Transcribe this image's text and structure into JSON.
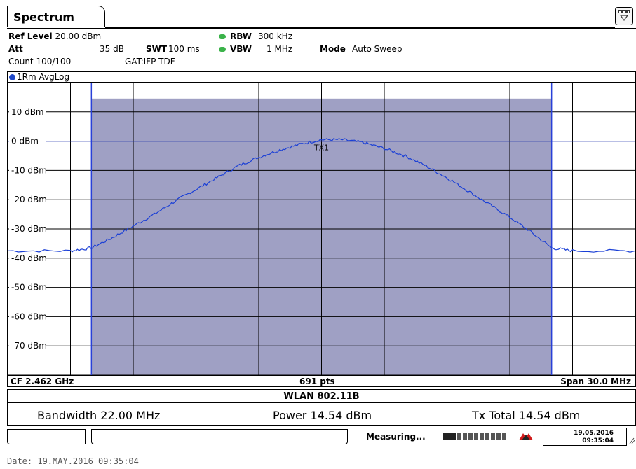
{
  "tab": {
    "title": "Spectrum"
  },
  "header": {
    "ref_level_label": "Ref Level",
    "ref_level_value": "20.00 dBm",
    "att_label": "Att",
    "att_value": "35 dB",
    "swt_label": "SWT",
    "swt_value": "100 ms",
    "rbw_label": "RBW",
    "rbw_value": "300 kHz",
    "vbw_label": "VBW",
    "vbw_value": "1 MHz",
    "mode_label": "Mode",
    "mode_value": "Auto Sweep",
    "count": "Count 100/100",
    "gat": "GAT:IFP TDF"
  },
  "trace_label": "1Rm AvgLog",
  "plot": {
    "y_labels": [
      "10 dBm",
      "0 dBm",
      "-10 dBm",
      "-20 dBm",
      "-30 dBm",
      "-40 dBm",
      "-50 dBm",
      "-60 dBm",
      "-70 dBm"
    ],
    "channel_label": "TX1"
  },
  "bottom": {
    "cf": "CF 2.462 GHz",
    "pts": "691 pts",
    "span": "Span 30.0 MHz"
  },
  "standard": "WLAN 802.11B",
  "results": {
    "bandwidth": "Bandwidth 22.00 MHz",
    "power": "Power 14.54 dBm",
    "tx_total": "Tx Total 14.54 dBm"
  },
  "status": {
    "measuring": "Measuring...",
    "date": "19.05.2016",
    "time": "09:35:04"
  },
  "footer": {
    "date": "Date: 19.MAY.2016  09:35:04"
  },
  "chart_data": {
    "type": "line",
    "y_range_dbm": [
      -80,
      20
    ],
    "x_range_mhz": [
      -15,
      15
    ],
    "channel_band_mhz": [
      -11,
      11
    ],
    "channel_power_dbm": 14.54,
    "grid": true,
    "trace": {
      "x_mhz": [
        -15,
        -12,
        -11,
        -10,
        -9,
        -8,
        -7,
        -6,
        -5,
        -4,
        -3,
        -2,
        -1,
        0,
        1,
        2,
        3,
        4,
        5,
        6,
        7,
        8,
        9,
        10,
        11,
        12,
        15
      ],
      "y_dbm": [
        -37.5,
        -37.5,
        -36.5,
        -33,
        -29,
        -25,
        -20.5,
        -16.5,
        -12.5,
        -8.5,
        -5.5,
        -3,
        -1,
        0.5,
        0.5,
        -0.5,
        -2.5,
        -5,
        -8.5,
        -12.5,
        -17,
        -21.5,
        -26,
        -31,
        -36.5,
        -37.5,
        -37.5
      ]
    },
    "colors": {
      "trace": "#1a3fd6",
      "channel_fill": "#9fa0c4",
      "line": "#2840d8"
    }
  }
}
